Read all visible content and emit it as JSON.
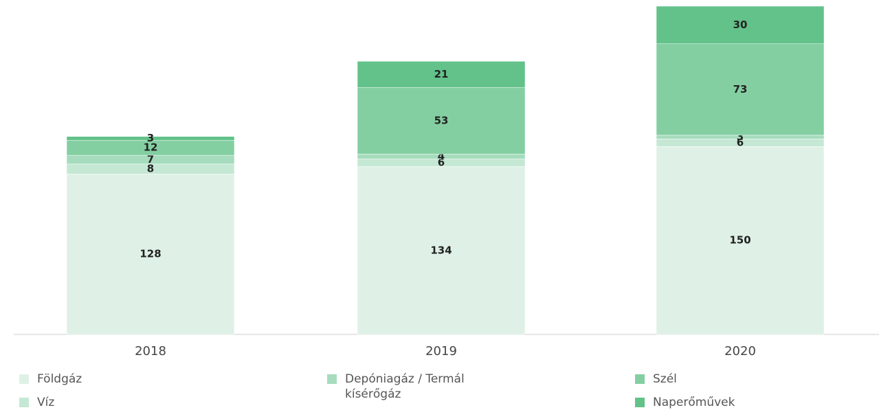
{
  "chart_data": {
    "type": "stacked_bar",
    "categories": [
      "2018",
      "2019",
      "2020"
    ],
    "series": [
      {
        "name": "Földgáz",
        "color": "#dff1e6",
        "values": [
          128,
          134,
          150
        ]
      },
      {
        "name": "Víz",
        "color": "#c5e8d4",
        "values": [
          8,
          6,
          6
        ]
      },
      {
        "name": "Depóniagáz / Termál kísérőgáz",
        "color": "#a6dcbd",
        "values": [
          7,
          4,
          3
        ]
      },
      {
        "name": "Szél",
        "color": "#84cfa2",
        "values": [
          12,
          53,
          73
        ]
      },
      {
        "name": "Naperőművek",
        "color": "#62c28a",
        "values": [
          3,
          21,
          30
        ]
      }
    ]
  }
}
